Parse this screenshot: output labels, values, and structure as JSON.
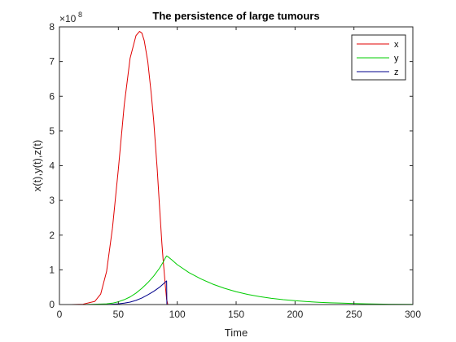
{
  "chart_data": {
    "type": "line",
    "title": "The persistence of large tumours",
    "xlabel": "Time",
    "ylabel": "x(t),y(t),z(t)",
    "xlim": [
      0,
      300
    ],
    "ylim": [
      0,
      8
    ],
    "y_scale_exponent": {
      "base": "×10",
      "power": "8"
    },
    "xticks": [
      0,
      50,
      100,
      150,
      200,
      250,
      300
    ],
    "yticks": [
      0,
      1,
      2,
      3,
      4,
      5,
      6,
      7,
      8
    ],
    "grid": false,
    "legend_position": "top-right",
    "series": [
      {
        "name": "x",
        "color": "#e00000",
        "x": [
          0,
          10,
          20,
          30,
          35,
          40,
          45,
          50,
          55,
          60,
          65,
          68,
          70,
          72,
          75,
          78,
          80,
          83,
          85,
          87,
          88,
          89,
          90,
          91,
          92,
          93,
          95,
          100,
          150,
          200,
          250,
          300
        ],
        "y": [
          0.0,
          0.0,
          0.01,
          0.09,
          0.3,
          0.95,
          2.2,
          3.9,
          5.75,
          7.1,
          7.75,
          7.87,
          7.82,
          7.6,
          7.0,
          6.05,
          5.3,
          3.9,
          2.8,
          1.75,
          1.3,
          0.9,
          0.5,
          0.15,
          0.0,
          0.0,
          0.0,
          0.0,
          0.0,
          0.0,
          0.0,
          0.0
        ]
      },
      {
        "name": "y",
        "color": "#00cc00",
        "x": [
          0,
          20,
          40,
          45,
          50,
          55,
          60,
          65,
          70,
          75,
          80,
          85,
          88,
          90,
          91,
          92,
          95,
          100,
          110,
          120,
          130,
          140,
          150,
          160,
          170,
          180,
          190,
          200,
          210,
          220,
          230,
          240,
          250,
          260,
          280,
          300
        ],
        "y": [
          0.0,
          0.0,
          0.02,
          0.04,
          0.08,
          0.14,
          0.22,
          0.33,
          0.47,
          0.63,
          0.82,
          1.05,
          1.22,
          1.35,
          1.4,
          1.38,
          1.3,
          1.15,
          0.92,
          0.74,
          0.59,
          0.47,
          0.37,
          0.29,
          0.23,
          0.18,
          0.14,
          0.11,
          0.085,
          0.065,
          0.05,
          0.04,
          0.03,
          0.02,
          0.01,
          0.005
        ]
      },
      {
        "name": "z",
        "color": "#00008b",
        "x": [
          0,
          30,
          40,
          50,
          55,
          60,
          65,
          70,
          75,
          80,
          85,
          88,
          90,
          91,
          91.2,
          95,
          100,
          150,
          200,
          250,
          300
        ],
        "y": [
          0.0,
          0.0,
          0.0,
          0.02,
          0.04,
          0.07,
          0.12,
          0.19,
          0.28,
          0.38,
          0.5,
          0.59,
          0.65,
          0.68,
          0.0,
          0.0,
          0.0,
          0.0,
          0.0,
          0.0,
          0.0
        ]
      }
    ]
  }
}
